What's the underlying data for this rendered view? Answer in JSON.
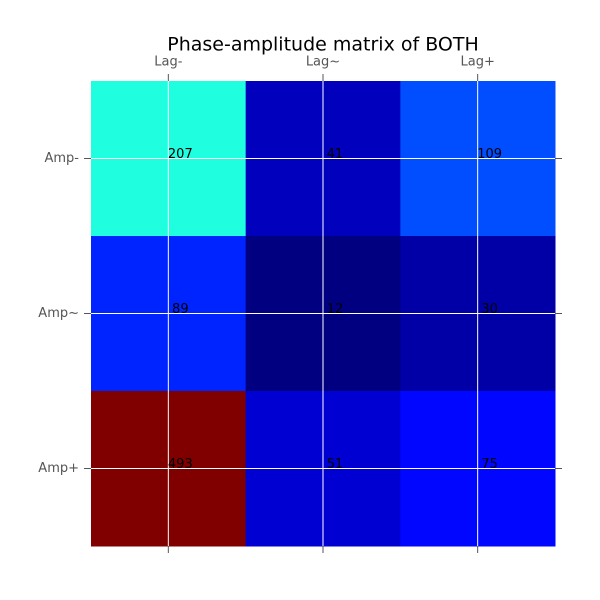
{
  "chart_data": {
    "type": "heatmap",
    "title": "Phase-amplitude matrix of BOTH",
    "x_categories": [
      "Lag-",
      "Lag~",
      "Lag+"
    ],
    "y_categories": [
      "Amp-",
      "Amp~",
      "Amp+"
    ],
    "values": [
      [
        207,
        41,
        109
      ],
      [
        89,
        12,
        30
      ],
      [
        493,
        51,
        75
      ]
    ],
    "colormap": "jet",
    "grid": true
  }
}
